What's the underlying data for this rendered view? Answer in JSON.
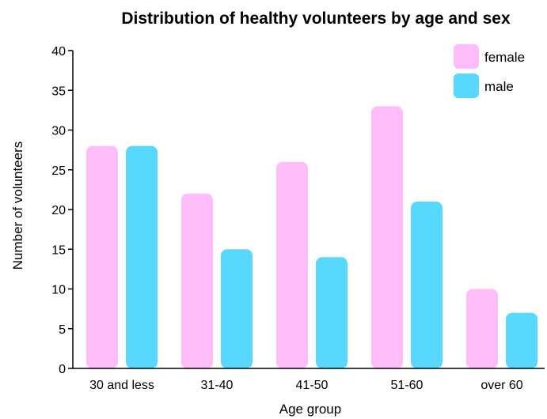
{
  "chart_data": {
    "type": "bar",
    "title": "Distribution of healthy volunteers by age and sex",
    "xlabel": "Age group",
    "ylabel": "Number of volunteers",
    "categories": [
      "30 and less",
      "31-40",
      "41-50",
      "51-60",
      "over 60"
    ],
    "series": [
      {
        "name": "female",
        "color": "#ffbdfb",
        "values": [
          28,
          22,
          26,
          33,
          10
        ]
      },
      {
        "name": "male",
        "color": "#58d8fc",
        "values": [
          28,
          15,
          14,
          21,
          7
        ]
      }
    ],
    "ylim": [
      0,
      40
    ],
    "yticks": [
      0,
      5,
      10,
      15,
      20,
      25,
      30,
      35,
      40
    ],
    "grid": false,
    "legend_position": "top-right"
  }
}
